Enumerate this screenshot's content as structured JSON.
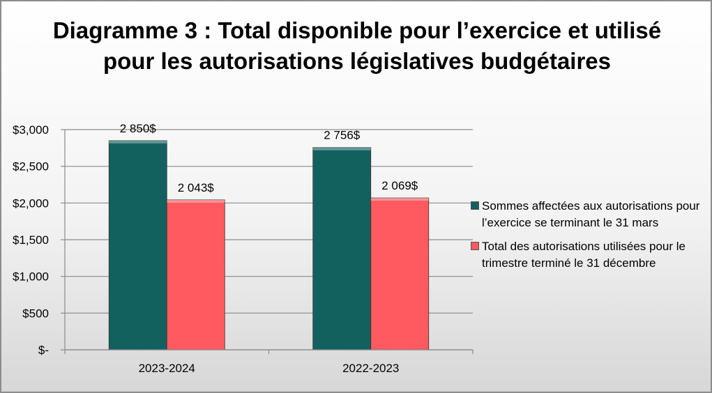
{
  "chart_data": {
    "type": "bar",
    "title": "Diagramme 3 : Total disponible pour l’exercice et utilisé pour les autorisations législatives budgétaires",
    "categories": [
      "2023-2024",
      "2022-2023"
    ],
    "series": [
      {
        "name": "Sommes affectées aux autorisations pour l’exercice se terminant le 31 mars",
        "values": [
          2850,
          2756
        ],
        "labels": [
          "2 850$",
          "2 756$"
        ],
        "color": "#13615f"
      },
      {
        "name": "Total des autorisations utilisées pour le trimestre terminé le 31 décembre",
        "values": [
          2043,
          2069
        ],
        "labels": [
          "2 043$",
          "2 069$"
        ],
        "color": "#ff5a5f"
      }
    ],
    "ylim": [
      0,
      3000
    ],
    "yticks": [
      0,
      500,
      1000,
      1500,
      2000,
      2500,
      3000
    ],
    "ytick_labels": [
      "$-",
      "$500",
      "$1,000",
      "$1,500",
      "$2,000",
      "$2,500",
      "$3,000"
    ],
    "grid": true,
    "legend_position": "right",
    "xlabel": "",
    "ylabel": ""
  }
}
